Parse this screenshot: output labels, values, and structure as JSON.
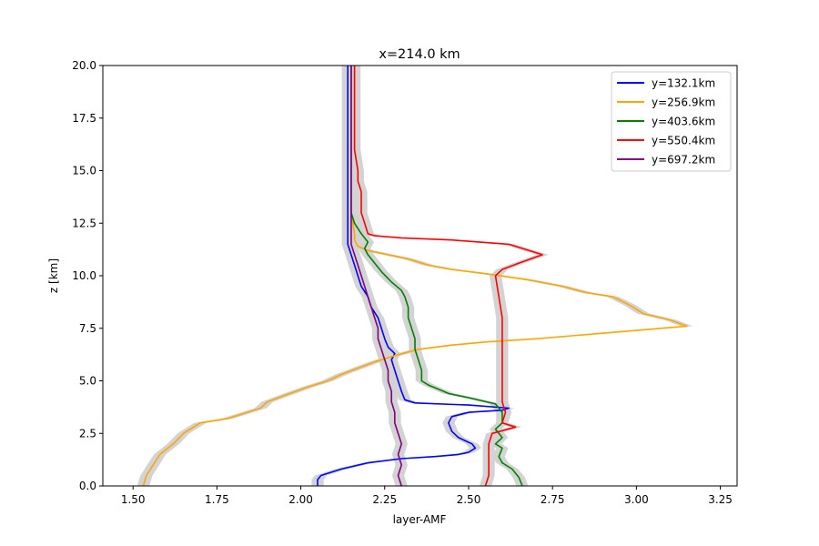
{
  "chart_data": {
    "type": "line",
    "title": "x=214.0 km",
    "xlabel": "layer-AMF",
    "ylabel": "z [km]",
    "xlim": [
      1.41,
      3.3
    ],
    "ylim": [
      0,
      20
    ],
    "x_ticks": [
      "1.50",
      "1.75",
      "2.00",
      "2.25",
      "2.50",
      "2.75",
      "3.00",
      "3.25"
    ],
    "y_ticks": [
      "0.0",
      "2.5",
      "5.0",
      "7.5",
      "10.0",
      "12.5",
      "15.0",
      "17.5",
      "20.0"
    ],
    "grid": false,
    "legend_position": "upper right",
    "band_color": "#d3d3d3",
    "series": [
      {
        "name": "y=132.1km",
        "color": "#0000ff",
        "points": [
          [
            2.05,
            0
          ],
          [
            2.05,
            0.3
          ],
          [
            2.06,
            0.5
          ],
          [
            2.12,
            0.8
          ],
          [
            2.2,
            1.1
          ],
          [
            2.3,
            1.3
          ],
          [
            2.4,
            1.4
          ],
          [
            2.47,
            1.5
          ],
          [
            2.5,
            1.6
          ],
          [
            2.52,
            1.8
          ],
          [
            2.51,
            2.0
          ],
          [
            2.47,
            2.3
          ],
          [
            2.45,
            2.6
          ],
          [
            2.44,
            3.0
          ],
          [
            2.45,
            3.3
          ],
          [
            2.5,
            3.5
          ],
          [
            2.6,
            3.6
          ],
          [
            2.62,
            3.7
          ],
          [
            2.5,
            3.85
          ],
          [
            2.34,
            3.95
          ],
          [
            2.31,
            4.1
          ],
          [
            2.3,
            4.5
          ],
          [
            2.29,
            5.0
          ],
          [
            2.28,
            5.5
          ],
          [
            2.27,
            6.0
          ],
          [
            2.28,
            6.3
          ],
          [
            2.26,
            6.6
          ],
          [
            2.25,
            7.0
          ],
          [
            2.24,
            7.5
          ],
          [
            2.23,
            8.0
          ],
          [
            2.21,
            8.5
          ],
          [
            2.2,
            9.0
          ],
          [
            2.18,
            9.5
          ],
          [
            2.17,
            10.0
          ],
          [
            2.16,
            10.5
          ],
          [
            2.15,
            11.0
          ],
          [
            2.14,
            11.5
          ],
          [
            2.14,
            12.0
          ],
          [
            2.14,
            13.0
          ],
          [
            2.14,
            14.0
          ],
          [
            2.14,
            15.0
          ],
          [
            2.14,
            16.0
          ],
          [
            2.14,
            17.0
          ],
          [
            2.14,
            18.0
          ],
          [
            2.14,
            19.0
          ],
          [
            2.14,
            20.0
          ]
        ]
      },
      {
        "name": "y=256.9km",
        "color": "#ffa500",
        "points": [
          [
            1.53,
            0
          ],
          [
            1.54,
            0.5
          ],
          [
            1.56,
            1.0
          ],
          [
            1.58,
            1.5
          ],
          [
            1.62,
            2.0
          ],
          [
            1.65,
            2.5
          ],
          [
            1.7,
            3.0
          ],
          [
            1.78,
            3.2
          ],
          [
            1.82,
            3.4
          ],
          [
            1.88,
            3.7
          ],
          [
            1.9,
            4.0
          ],
          [
            1.95,
            4.3
          ],
          [
            2.02,
            4.7
          ],
          [
            2.08,
            5.0
          ],
          [
            2.12,
            5.3
          ],
          [
            2.17,
            5.6
          ],
          [
            2.22,
            5.9
          ],
          [
            2.28,
            6.2
          ],
          [
            2.35,
            6.5
          ],
          [
            2.45,
            6.7
          ],
          [
            2.55,
            6.85
          ],
          [
            2.7,
            7.0
          ],
          [
            2.85,
            7.2
          ],
          [
            3.0,
            7.4
          ],
          [
            3.15,
            7.6
          ],
          [
            3.1,
            7.9
          ],
          [
            3.02,
            8.2
          ],
          [
            2.98,
            8.6
          ],
          [
            2.93,
            9.0
          ],
          [
            2.85,
            9.2
          ],
          [
            2.78,
            9.5
          ],
          [
            2.68,
            9.8
          ],
          [
            2.55,
            10.1
          ],
          [
            2.45,
            10.3
          ],
          [
            2.38,
            10.5
          ],
          [
            2.32,
            10.8
          ],
          [
            2.26,
            11.0
          ],
          [
            2.2,
            11.2
          ],
          [
            2.17,
            11.4
          ],
          [
            2.16,
            11.7
          ],
          [
            2.16,
            12.0
          ],
          [
            2.15,
            13.0
          ],
          [
            2.15,
            14.0
          ],
          [
            2.15,
            15.0
          ],
          [
            2.15,
            16.0
          ],
          [
            2.15,
            17.0
          ],
          [
            2.15,
            18.0
          ],
          [
            2.15,
            19.0
          ],
          [
            2.15,
            20.0
          ]
        ]
      },
      {
        "name": "y=403.6km",
        "color": "#008000",
        "points": [
          [
            2.66,
            0
          ],
          [
            2.65,
            0.4
          ],
          [
            2.63,
            0.8
          ],
          [
            2.6,
            1.1
          ],
          [
            2.59,
            1.4
          ],
          [
            2.6,
            1.8
          ],
          [
            2.58,
            2.0
          ],
          [
            2.6,
            2.3
          ],
          [
            2.58,
            2.7
          ],
          [
            2.6,
            3.0
          ],
          [
            2.6,
            3.5
          ],
          [
            2.58,
            3.9
          ],
          [
            2.5,
            4.2
          ],
          [
            2.44,
            4.4
          ],
          [
            2.41,
            4.6
          ],
          [
            2.38,
            4.8
          ],
          [
            2.36,
            5.0
          ],
          [
            2.36,
            5.5
          ],
          [
            2.35,
            6.0
          ],
          [
            2.34,
            6.5
          ],
          [
            2.34,
            7.0
          ],
          [
            2.33,
            7.5
          ],
          [
            2.32,
            8.0
          ],
          [
            2.32,
            8.5
          ],
          [
            2.31,
            9.0
          ],
          [
            2.3,
            9.3
          ],
          [
            2.27,
            9.7
          ],
          [
            2.24,
            10.2
          ],
          [
            2.22,
            10.6
          ],
          [
            2.2,
            11.0
          ],
          [
            2.19,
            11.3
          ],
          [
            2.2,
            11.6
          ],
          [
            2.18,
            12.0
          ],
          [
            2.16,
            12.5
          ],
          [
            2.15,
            13.0
          ],
          [
            2.15,
            14.0
          ],
          [
            2.15,
            15.0
          ],
          [
            2.15,
            16.0
          ],
          [
            2.15,
            17.0
          ],
          [
            2.15,
            18.0
          ],
          [
            2.15,
            19.0
          ],
          [
            2.15,
            20.0
          ]
        ]
      },
      {
        "name": "y=550.4km",
        "color": "#ff0000",
        "points": [
          [
            2.55,
            0
          ],
          [
            2.56,
            0.5
          ],
          [
            2.56,
            1.0
          ],
          [
            2.56,
            1.5
          ],
          [
            2.56,
            2.0
          ],
          [
            2.57,
            2.5
          ],
          [
            2.64,
            2.8
          ],
          [
            2.6,
            3.0
          ],
          [
            2.61,
            3.5
          ],
          [
            2.6,
            4.0
          ],
          [
            2.6,
            5.0
          ],
          [
            2.6,
            6.0
          ],
          [
            2.6,
            7.0
          ],
          [
            2.6,
            8.0
          ],
          [
            2.59,
            9.0
          ],
          [
            2.58,
            10.0
          ],
          [
            2.6,
            10.3
          ],
          [
            2.65,
            10.6
          ],
          [
            2.72,
            11.0
          ],
          [
            2.62,
            11.5
          ],
          [
            2.45,
            11.7
          ],
          [
            2.3,
            11.8
          ],
          [
            2.22,
            11.9
          ],
          [
            2.2,
            12.0
          ],
          [
            2.19,
            12.5
          ],
          [
            2.18,
            13.0
          ],
          [
            2.18,
            14.0
          ],
          [
            2.17,
            14.5
          ],
          [
            2.17,
            15.0
          ],
          [
            2.16,
            16.0
          ],
          [
            2.16,
            17.0
          ],
          [
            2.16,
            18.0
          ],
          [
            2.16,
            19.0
          ],
          [
            2.16,
            20.0
          ]
        ]
      },
      {
        "name": "y=697.2km",
        "color": "#800080",
        "points": [
          [
            2.3,
            0
          ],
          [
            2.29,
            0.5
          ],
          [
            2.3,
            1.0
          ],
          [
            2.29,
            1.5
          ],
          [
            2.3,
            2.0
          ],
          [
            2.29,
            2.5
          ],
          [
            2.28,
            3.0
          ],
          [
            2.28,
            3.5
          ],
          [
            2.27,
            4.0
          ],
          [
            2.27,
            4.5
          ],
          [
            2.26,
            5.0
          ],
          [
            2.26,
            5.5
          ],
          [
            2.25,
            6.0
          ],
          [
            2.24,
            6.5
          ],
          [
            2.23,
            7.0
          ],
          [
            2.23,
            7.5
          ],
          [
            2.22,
            8.0
          ],
          [
            2.21,
            8.5
          ],
          [
            2.2,
            9.0
          ],
          [
            2.19,
            9.5
          ],
          [
            2.18,
            10.0
          ],
          [
            2.17,
            10.5
          ],
          [
            2.16,
            11.0
          ],
          [
            2.15,
            11.5
          ],
          [
            2.15,
            12.0
          ],
          [
            2.15,
            13.0
          ],
          [
            2.15,
            14.0
          ],
          [
            2.15,
            15.0
          ],
          [
            2.15,
            16.0
          ],
          [
            2.15,
            17.0
          ],
          [
            2.15,
            18.0
          ],
          [
            2.15,
            19.0
          ],
          [
            2.15,
            20.0
          ]
        ]
      }
    ]
  }
}
